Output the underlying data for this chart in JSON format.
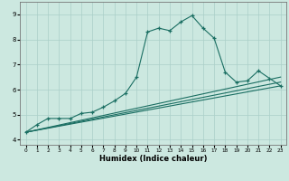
{
  "title": "",
  "xlabel": "Humidex (Indice chaleur)",
  "bg_color": "#cce8e0",
  "line_color": "#1a6e62",
  "grid_color": "#aacfc8",
  "xlim": [
    -0.5,
    23.5
  ],
  "ylim": [
    3.8,
    9.5
  ],
  "xticks": [
    0,
    1,
    2,
    3,
    4,
    5,
    6,
    7,
    8,
    9,
    10,
    11,
    12,
    13,
    14,
    15,
    16,
    17,
    18,
    19,
    20,
    21,
    22,
    23
  ],
  "yticks": [
    4,
    5,
    6,
    7,
    8,
    9
  ],
  "series": [
    {
      "x": [
        0,
        1,
        2,
        3,
        4,
        5,
        6,
        7,
        8,
        9,
        10,
        11,
        12,
        13,
        14,
        15,
        16,
        17,
        18,
        19,
        20,
        21,
        22,
        23
      ],
      "y": [
        4.3,
        4.6,
        4.85,
        4.85,
        4.85,
        5.05,
        5.1,
        5.3,
        5.55,
        5.85,
        6.5,
        8.3,
        8.45,
        8.35,
        8.7,
        8.95,
        8.45,
        8.05,
        6.7,
        6.3,
        6.35,
        6.75,
        6.45,
        6.15
      ],
      "marker": "+"
    },
    {
      "x": [
        0,
        23
      ],
      "y": [
        4.3,
        6.15
      ],
      "marker": null
    },
    {
      "x": [
        0,
        23
      ],
      "y": [
        4.3,
        6.3
      ],
      "marker": null
    },
    {
      "x": [
        0,
        23
      ],
      "y": [
        4.3,
        6.5
      ],
      "marker": null
    }
  ]
}
